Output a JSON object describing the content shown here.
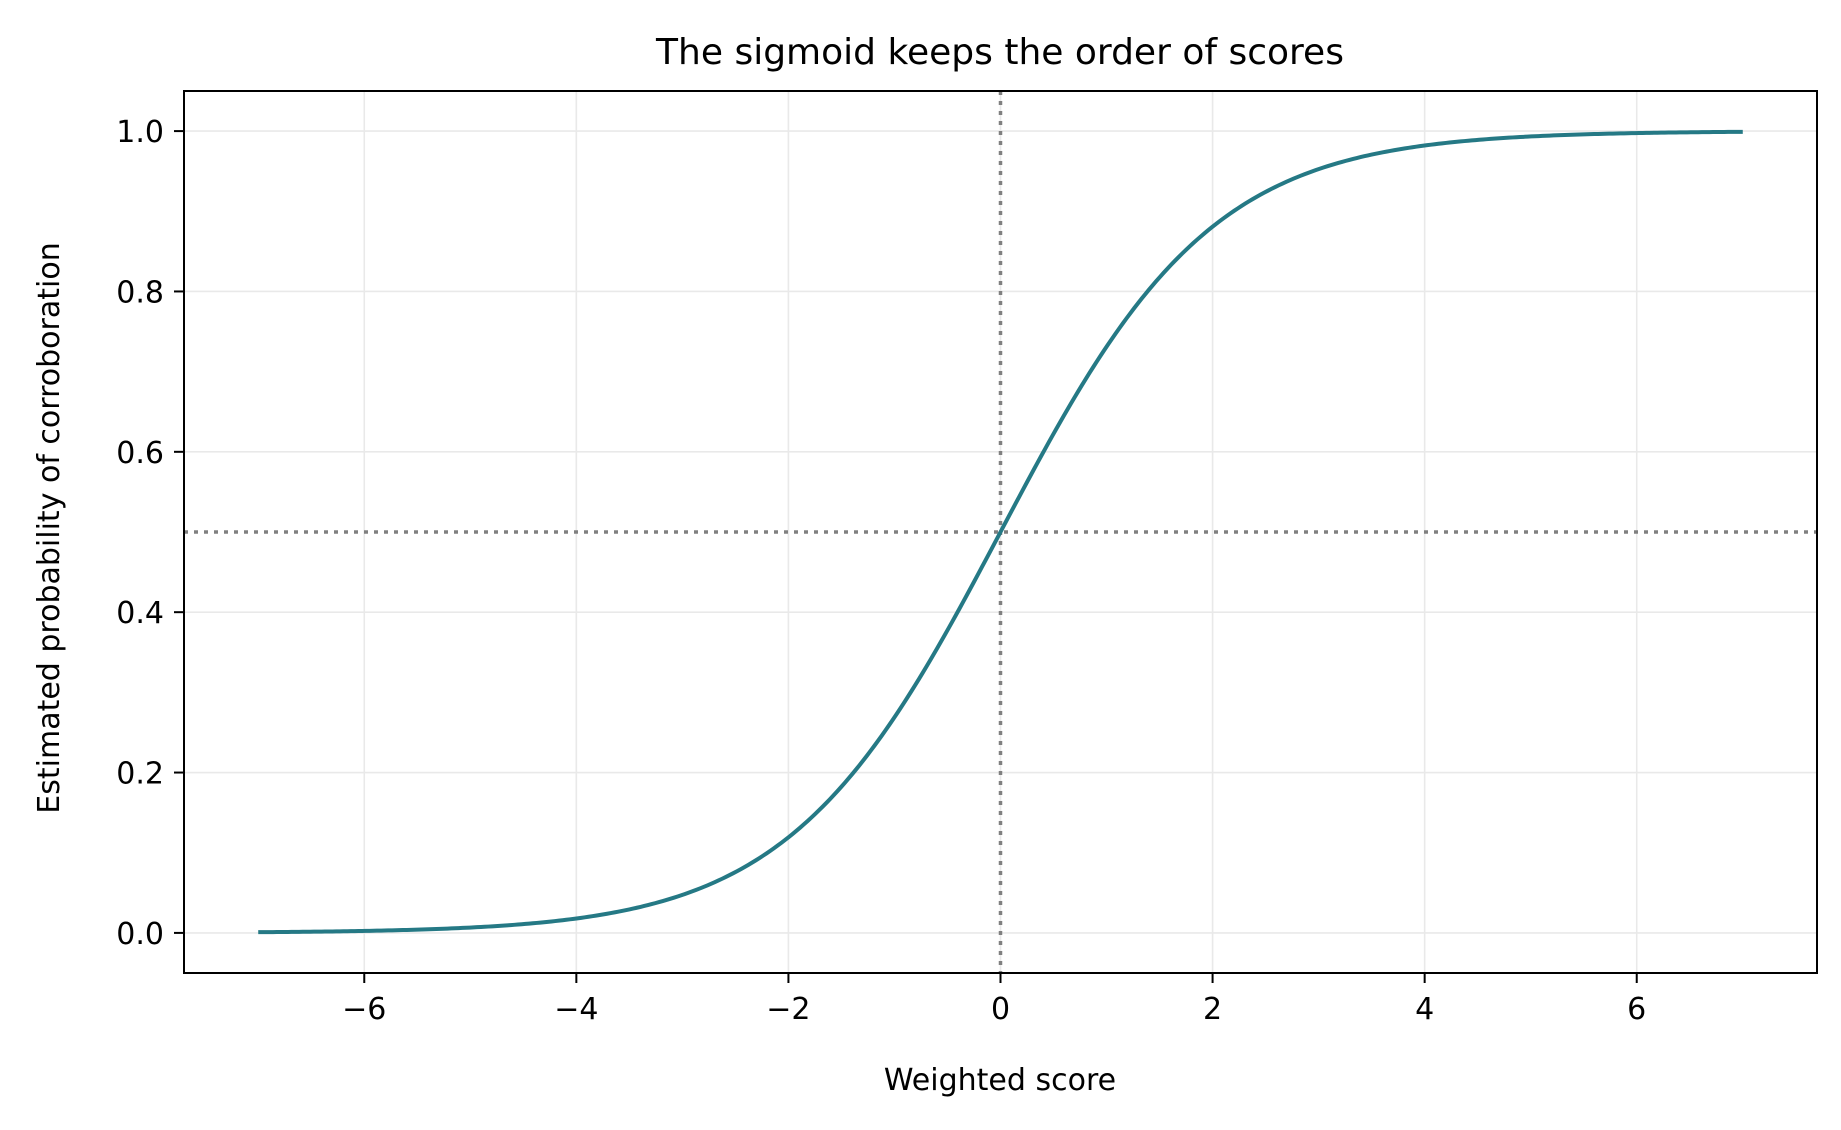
{
  "chart_data": {
    "type": "line",
    "title": "The sigmoid keeps the order of scores",
    "xlabel": "Weighted score",
    "ylabel": "Estimated probability of corroboration",
    "xlim": [
      -7.7,
      7.7
    ],
    "ylim": [
      -0.05,
      1.05
    ],
    "x_ticks": [
      -6,
      -4,
      -2,
      0,
      2,
      4,
      6
    ],
    "x_tick_labels": [
      "−6",
      "−4",
      "−2",
      "0",
      "2",
      "4",
      "6"
    ],
    "y_ticks": [
      0.0,
      0.2,
      0.4,
      0.6,
      0.8,
      1.0
    ],
    "y_tick_labels": [
      "0.0",
      "0.2",
      "0.4",
      "0.6",
      "0.8",
      "1.0"
    ],
    "grid": true,
    "series": [
      {
        "function": "sigmoid",
        "color": "#257985",
        "x": [
          -7,
          -6.5,
          -6,
          -5.5,
          -5,
          -4.5,
          -4,
          -3.5,
          -3,
          -2.5,
          -2,
          -1.5,
          -1,
          -0.5,
          0,
          0.5,
          1,
          1.5,
          2,
          2.5,
          3,
          3.5,
          4,
          4.5,
          5,
          5.5,
          6,
          6.5,
          7
        ],
        "y": [
          0.001,
          0.002,
          0.002,
          0.004,
          0.007,
          0.011,
          0.018,
          0.029,
          0.047,
          0.076,
          0.119,
          0.182,
          0.269,
          0.378,
          0.5,
          0.622,
          0.731,
          0.818,
          0.881,
          0.924,
          0.953,
          0.971,
          0.982,
          0.989,
          0.993,
          0.996,
          0.998,
          0.998,
          0.999
        ]
      }
    ],
    "reference_lines": [
      {
        "orientation": "vertical",
        "value": 0,
        "style": "dotted",
        "color": "#808080"
      },
      {
        "orientation": "horizontal",
        "value": 0.5,
        "style": "dotted",
        "color": "#808080"
      }
    ]
  }
}
